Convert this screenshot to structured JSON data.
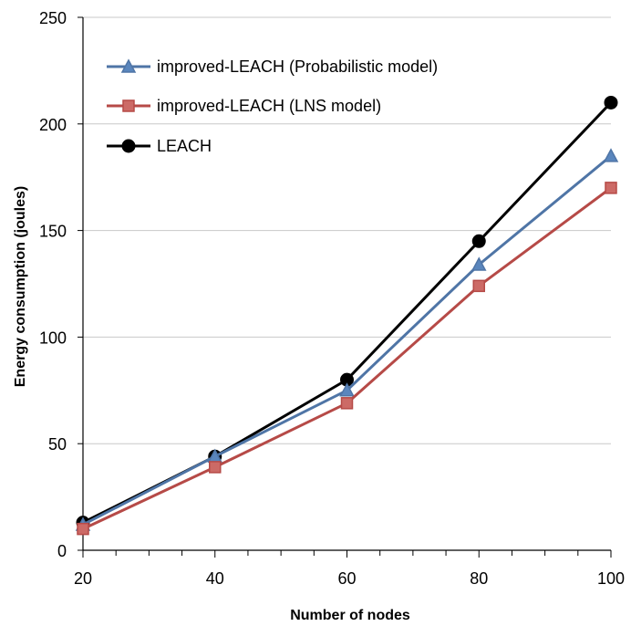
{
  "chart_data": {
    "type": "line",
    "xlabel": "Number of nodes",
    "ylabel": "Energy consumption (joules)",
    "x": [
      20,
      40,
      60,
      80,
      100
    ],
    "xlim": [
      20,
      100
    ],
    "ylim": [
      0,
      250
    ],
    "x_ticks": [
      "20",
      "40",
      "60",
      "80",
      "100"
    ],
    "y_ticks": [
      "0",
      "50",
      "100",
      "150",
      "200",
      "250"
    ],
    "grid": "horizontal",
    "legend_position": "top-left",
    "series": [
      {
        "name": "improved-LEACH (Probabilistic model)",
        "values": [
          12,
          44,
          75,
          134,
          185
        ],
        "color": "#4f75a6",
        "marker": "triangle"
      },
      {
        "name": "improved-LEACH (LNS model)",
        "values": [
          10,
          39,
          69,
          124,
          170
        ],
        "color": "#b64a47",
        "marker": "square"
      },
      {
        "name": "LEACH",
        "values": [
          13,
          44,
          80,
          145,
          210
        ],
        "color": "#000000",
        "marker": "circle"
      }
    ]
  }
}
